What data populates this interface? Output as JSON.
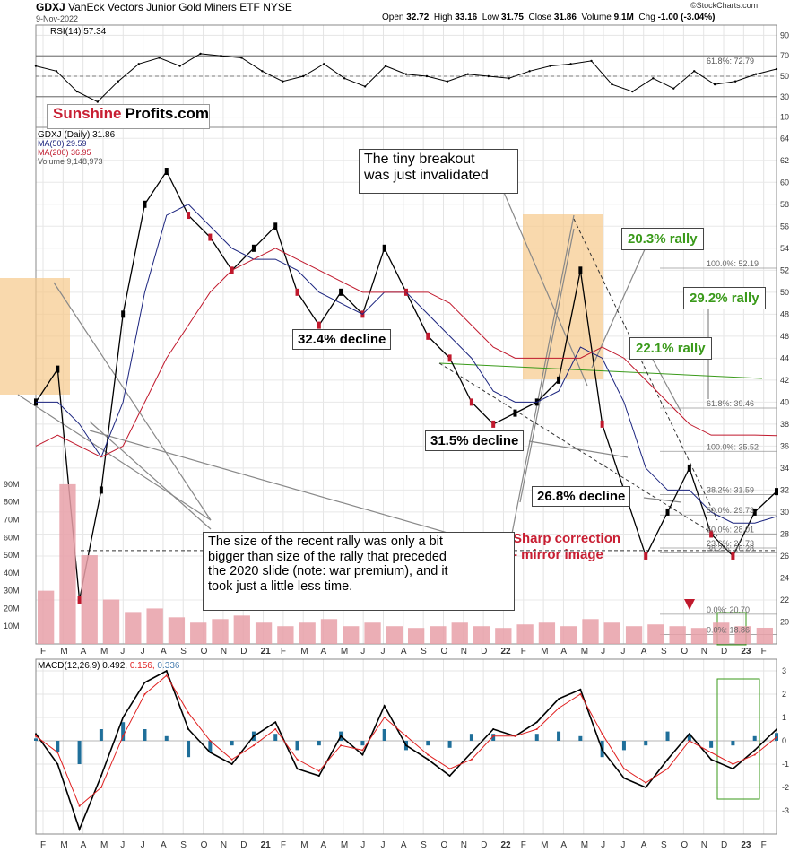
{
  "header": {
    "symbol": "GDXJ",
    "name": "VanEck Vectors Junior Gold Miners ETF",
    "exchange": "NYSE",
    "date": "9-Nov-2022",
    "open_label": "Open",
    "open": "32.72",
    "high_label": "High",
    "high": "33.16",
    "low_label": "Low",
    "low": "31.75",
    "close_label": "Close",
    "close": "31.86",
    "volume_label": "Volume",
    "volume": "9.1M",
    "chg_label": "Chg",
    "chg": "-1.00 (-3.04%)",
    "brand": "©StockCharts.com"
  },
  "branding": {
    "part1": "Sunshine",
    "part2": "Profits.com"
  },
  "annotations": {
    "tiny_breakout": "The tiny breakout\nwas just invalidated",
    "rally_20": "20.3% rally",
    "rally_29": "29.2% rally",
    "rally_22": "22.1% rally",
    "decline_32": "32.4% decline",
    "decline_31": "31.5% decline",
    "decline_26": "26.8% decline",
    "sharp_correction": "Sharp correction\n- mirror image",
    "rally_note": "The size of the recent rally was only a bit\nbigger than size of the rally that preceded\nthe 2020 slide (note: war premium), and it\ntook just a little less time."
  },
  "colors": {
    "ma50": "#1a237e",
    "ma200": "#c0182c",
    "up": "#000000",
    "down": "#c0182c",
    "highlight": "#f7c98a",
    "macd": "#000000",
    "signal": "#e02020",
    "histogram": "#1f6f9a",
    "green": "#3a9a1a",
    "annotation_red": "#c81e32"
  },
  "chart_data": [
    {
      "type": "line",
      "panel": "RSI",
      "legend": "RSI(14) 57.34",
      "ylim": [
        0,
        100
      ],
      "y_ticks": [
        10,
        30,
        50,
        70,
        90
      ],
      "reference_levels": [
        30,
        50,
        70
      ],
      "fib_label": "61.8%: 72.79",
      "months": [
        "F",
        "M",
        "A",
        "M",
        "J",
        "J",
        "A",
        "S",
        "O",
        "N",
        "D",
        "21",
        "F",
        "M",
        "A",
        "M",
        "J",
        "J",
        "A",
        "S",
        "O",
        "N",
        "D",
        "22",
        "F",
        "M",
        "A",
        "M",
        "J",
        "J",
        "A",
        "S",
        "O",
        "N",
        "D",
        "23",
        "F"
      ],
      "values": [
        60,
        55,
        35,
        25,
        45,
        62,
        68,
        60,
        72,
        70,
        68,
        55,
        45,
        50,
        62,
        48,
        40,
        60,
        52,
        50,
        45,
        52,
        50,
        48,
        55,
        60,
        62,
        65,
        42,
        35,
        48,
        38,
        55,
        42,
        45,
        52,
        57
      ]
    },
    {
      "type": "line",
      "panel": "Price",
      "legend_symbol": "GDXJ (Daily) 31.86",
      "legend_ma50": "MA(50) 29.59",
      "legend_ma200": "MA(200) 36.95",
      "legend_volume": "Volume 9,148,973",
      "ylim": [
        18,
        65
      ],
      "y_ticks": [
        20,
        22,
        24,
        26,
        28,
        30,
        32,
        34,
        36,
        38,
        40,
        42,
        44,
        46,
        48,
        50,
        52,
        54,
        56,
        58,
        60,
        62,
        64
      ],
      "months": [
        "F",
        "M",
        "A",
        "M",
        "J",
        "J",
        "A",
        "S",
        "O",
        "N",
        "D",
        "21",
        "F",
        "M",
        "A",
        "M",
        "J",
        "J",
        "A",
        "S",
        "O",
        "N",
        "D",
        "22",
        "F",
        "M",
        "A",
        "M",
        "J",
        "J",
        "A",
        "S",
        "O",
        "N",
        "D",
        "23",
        "F"
      ],
      "series": [
        {
          "name": "GDXJ (Daily)",
          "values": [
            40,
            43,
            22,
            32,
            48,
            58,
            61,
            57,
            55,
            52,
            54,
            56,
            50,
            47,
            50,
            48,
            54,
            50,
            46,
            44,
            40,
            38,
            39,
            40,
            42,
            52,
            38,
            32,
            26,
            30,
            34,
            28,
            26,
            30,
            31.86
          ]
        },
        {
          "name": "MA(50)",
          "values": [
            40,
            40,
            38,
            35,
            40,
            50,
            57,
            58,
            56,
            54,
            53,
            53,
            52,
            50,
            49,
            48,
            50,
            50,
            48,
            46,
            44,
            41,
            40,
            40,
            41,
            45,
            44,
            40,
            34,
            32,
            32,
            30,
            29,
            29,
            29.59
          ]
        },
        {
          "name": "MA(200)",
          "values": [
            36,
            37,
            36,
            35,
            36,
            40,
            44,
            47,
            50,
            52,
            53,
            54,
            53,
            52,
            51,
            50,
            50,
            50,
            50,
            49,
            47,
            45,
            44,
            44,
            44,
            44,
            45,
            44,
            42,
            40,
            38,
            37,
            37,
            37,
            36.95
          ]
        }
      ],
      "fib_levels": [
        {
          "label": "100.0%: 52.19",
          "value": 52.19
        },
        {
          "label": "61.8%: 39.46",
          "value": 39.46
        },
        {
          "label": "100.0%: 35.52",
          "value": 35.52
        },
        {
          "label": "38.2%: 31.59",
          "value": 31.59
        },
        {
          "label": "50.0%: 29.73",
          "value": 29.73
        },
        {
          "label": "50.0%: 28.01",
          "value": 28.01
        },
        {
          "label": "23.6%: 26.73",
          "value": 26.73
        },
        {
          "label": "38.2%: 26.28",
          "value": 26.28
        },
        {
          "label": "0.0%: 20.70",
          "value": 20.7
        },
        {
          "label": "0.0%: 18.86",
          "value": 18.86
        }
      ]
    },
    {
      "type": "bar",
      "panel": "Volume",
      "y_ticks": [
        "10M",
        "20M",
        "30M",
        "40M",
        "50M",
        "60M",
        "70M",
        "80M",
        "90M"
      ],
      "values_millions": [
        30,
        90,
        50,
        25,
        18,
        20,
        15,
        12,
        14,
        16,
        12,
        10,
        12,
        14,
        10,
        12,
        10,
        9,
        10,
        12,
        10,
        9,
        11,
        12,
        10,
        14,
        12,
        10,
        11,
        10,
        9,
        12,
        10,
        9.1
      ]
    },
    {
      "type": "line",
      "panel": "MACD",
      "legend": "MACD(12,26,9) 0.492, 0.156, 0.336",
      "legend_macd": "MACD(12,26,9) 0.492",
      "legend_signal": "0.156",
      "legend_hist": "0.336",
      "ylim": [
        -4,
        3.5
      ],
      "y_ticks": [
        -3,
        -2,
        -1,
        0,
        1,
        2,
        3
      ],
      "months": [
        "F",
        "M",
        "A",
        "M",
        "J",
        "J",
        "A",
        "S",
        "O",
        "N",
        "D",
        "21",
        "F",
        "M",
        "A",
        "M",
        "J",
        "J",
        "A",
        "S",
        "O",
        "N",
        "D",
        "22",
        "F",
        "M",
        "A",
        "M",
        "J",
        "J",
        "A",
        "S",
        "O",
        "N",
        "D",
        "23",
        "F"
      ],
      "series": [
        {
          "name": "MACD",
          "values": [
            0.3,
            -1,
            -3.8,
            -1.5,
            1,
            2.5,
            3,
            0.5,
            -0.5,
            -1,
            0.2,
            0.8,
            -1.2,
            -1.5,
            0.2,
            -0.6,
            1.5,
            -0.2,
            -0.8,
            -1.5,
            -0.5,
            0.5,
            0.2,
            0.8,
            1.8,
            2.2,
            -0.4,
            -1.6,
            -2,
            -0.8,
            0.3,
            -0.8,
            -1.2,
            -0.4,
            0.492
          ]
        },
        {
          "name": "Signal",
          "values": [
            0.2,
            -0.5,
            -2.8,
            -2,
            0.2,
            2,
            2.8,
            1.2,
            0,
            -0.8,
            -0.2,
            0.5,
            -0.8,
            -1.3,
            -0.2,
            -0.4,
            1,
            0.2,
            -0.6,
            -1.2,
            -0.8,
            0.2,
            0.2,
            0.5,
            1.4,
            2,
            0.3,
            -1.2,
            -1.8,
            -1.2,
            0,
            -0.5,
            -1,
            -0.6,
            0.156
          ]
        }
      ]
    }
  ]
}
